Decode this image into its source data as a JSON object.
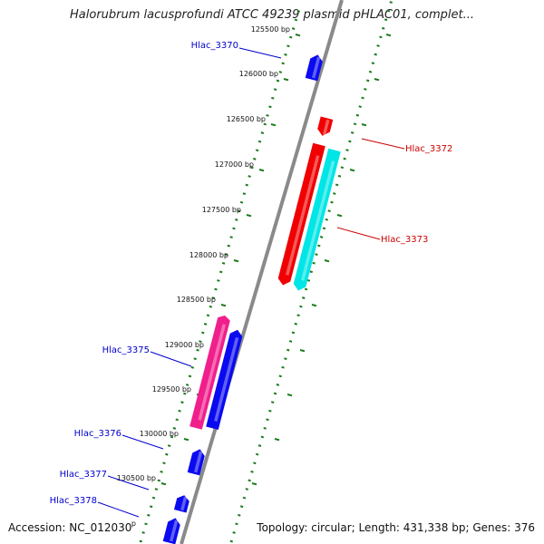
{
  "title": "Halorubrum lacusprofundi ATCC 49239 plasmid pHLAC01, complet...",
  "footer": {
    "accession": "Accession: NC_012030",
    "summary": "Topology: circular; Length: 431,338 bp; Genes: 376"
  },
  "colors": {
    "backbone": "#8a8a8a",
    "ruler": "#1a7a1a",
    "forward_label": "#0000cc",
    "reverse_label": "#cc0000",
    "blue": "#0a0af0",
    "red": "#f00000",
    "cyan": "#00e5e5",
    "magenta": "#f01f8c"
  },
  "ticks": [
    {
      "text": "125500 bp"
    },
    {
      "text": "126000 bp"
    },
    {
      "text": "126500 bp"
    },
    {
      "text": "127000 bp"
    },
    {
      "text": "127500 bp"
    },
    {
      "text": "128000 bp"
    },
    {
      "text": "128500 bp"
    },
    {
      "text": "129000 bp"
    },
    {
      "text": "129500 bp"
    },
    {
      "text": "130000 bp"
    },
    {
      "text": "130500 bp"
    }
  ],
  "partial_tick_label": "p",
  "gene_labels": [
    {
      "text": "Hlac_3370",
      "strand": "forward"
    },
    {
      "text": "Hlac_3372",
      "strand": "reverse"
    },
    {
      "text": "Hlac_3373",
      "strand": "reverse"
    },
    {
      "text": "Hlac_3375",
      "strand": "forward"
    },
    {
      "text": "Hlac_3376",
      "strand": "forward"
    },
    {
      "text": "Hlac_3377",
      "strand": "forward"
    },
    {
      "text": "Hlac_3378",
      "strand": "forward"
    }
  ],
  "genes": [
    {
      "name": "Hlac_3370",
      "color": "blue"
    },
    {
      "name": "Hlac_3372-a",
      "color": "red"
    },
    {
      "name": "Hlac_3372-b",
      "color": "red"
    },
    {
      "name": "Hlac_3373",
      "color": "cyan"
    },
    {
      "name": "Hlac_3375-a",
      "color": "magenta"
    },
    {
      "name": "Hlac_3375-b",
      "color": "blue"
    },
    {
      "name": "Hlac_3376",
      "color": "blue"
    },
    {
      "name": "Hlac_3377",
      "color": "blue"
    },
    {
      "name": "Hlac_3378",
      "color": "blue"
    }
  ]
}
